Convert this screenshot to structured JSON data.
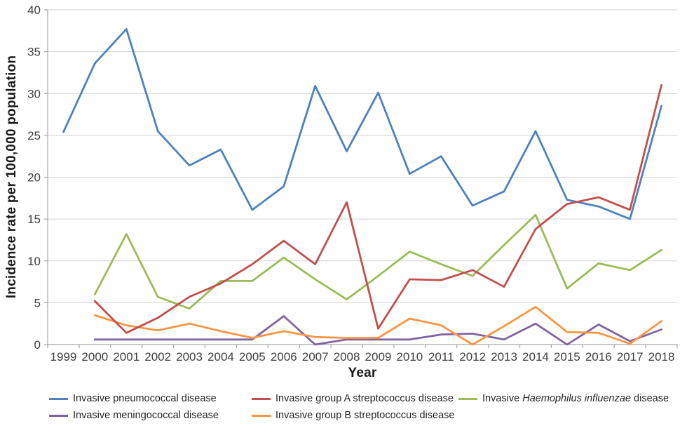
{
  "chart_data": {
    "type": "line",
    "title": "",
    "xlabel": "Year",
    "ylabel": "Incidence rate per 100,000 population",
    "x": [
      1999,
      2000,
      2001,
      2002,
      2003,
      2004,
      2005,
      2006,
      2007,
      2008,
      2009,
      2010,
      2011,
      2012,
      2013,
      2014,
      2015,
      2016,
      2017,
      2018
    ],
    "ylim": [
      0,
      40
    ],
    "ytick_interval": 5,
    "grid": true,
    "legend_position": "bottom",
    "grid_color": "#d2d2d2",
    "axis_color": "#a6a6a6",
    "tick_label_color": "#3f3f3f",
    "series": [
      {
        "name": "Invasive pneumococcal disease",
        "color": "#4F81BD",
        "values": [
          25.4,
          33.6,
          37.7,
          25.5,
          21.4,
          23.3,
          16.1,
          18.9,
          30.9,
          23.1,
          30.1,
          20.4,
          22.5,
          16.6,
          18.3,
          25.5,
          17.3,
          16.5,
          15.0,
          28.5
        ]
      },
      {
        "name": "Invasive group A streptococcus disease",
        "color": "#C0504D",
        "values": [
          null,
          5.2,
          1.4,
          3.2,
          5.7,
          7.3,
          9.6,
          12.4,
          9.6,
          17.0,
          1.9,
          7.8,
          7.7,
          8.9,
          6.9,
          13.8,
          16.8,
          17.6,
          16.1,
          31.0
        ]
      },
      {
        "name": "Invasive Haemophilus influenzae disease",
        "name_parts": [
          {
            "text": "Invasive "
          },
          {
            "text": "Haemophilus influenzae",
            "italic": true
          },
          {
            "text": " disease"
          }
        ],
        "color": "#9BBB59",
        "values": [
          null,
          6.0,
          13.2,
          5.7,
          4.3,
          7.6,
          7.6,
          10.4,
          7.8,
          5.4,
          8.2,
          11.1,
          9.6,
          8.2,
          11.9,
          15.5,
          6.7,
          9.7,
          8.9,
          11.3
        ]
      },
      {
        "name": "Invasive meningococcal disease",
        "color": "#8064A2",
        "values": [
          null,
          0.6,
          0.6,
          0.6,
          0.6,
          0.6,
          0.6,
          3.4,
          0.0,
          0.6,
          0.6,
          0.6,
          1.2,
          1.3,
          0.6,
          2.5,
          0.0,
          2.4,
          0.4,
          1.8
        ]
      },
      {
        "name": "Invasive group B streptococcus disease",
        "color": "#F79646",
        "values": [
          null,
          3.5,
          2.3,
          1.7,
          2.5,
          1.6,
          0.8,
          1.6,
          0.9,
          0.8,
          0.8,
          3.1,
          2.3,
          0.0,
          2.2,
          4.5,
          1.5,
          1.4,
          0.1,
          2.8
        ]
      }
    ]
  }
}
